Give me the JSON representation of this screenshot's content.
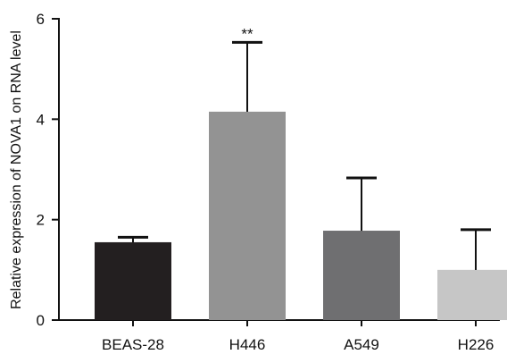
{
  "chart_data": {
    "type": "bar",
    "categories": [
      "BEAS-28",
      "H446",
      "A549",
      "H226"
    ],
    "values": [
      1.55,
      4.15,
      1.78,
      1.0
    ],
    "errors": [
      0.1,
      1.38,
      1.05,
      0.8
    ],
    "annotations": [
      "",
      "**",
      "",
      ""
    ],
    "colors": [
      "#231f20",
      "#939393",
      "#6f6f71",
      "#c6c6c6"
    ],
    "title": "",
    "xlabel": "",
    "ylabel": "Relative expression of NOVA1 on RNA level",
    "ylim": [
      0,
      6
    ],
    "yticks": [
      0,
      2,
      4,
      6
    ],
    "grid": false
  }
}
